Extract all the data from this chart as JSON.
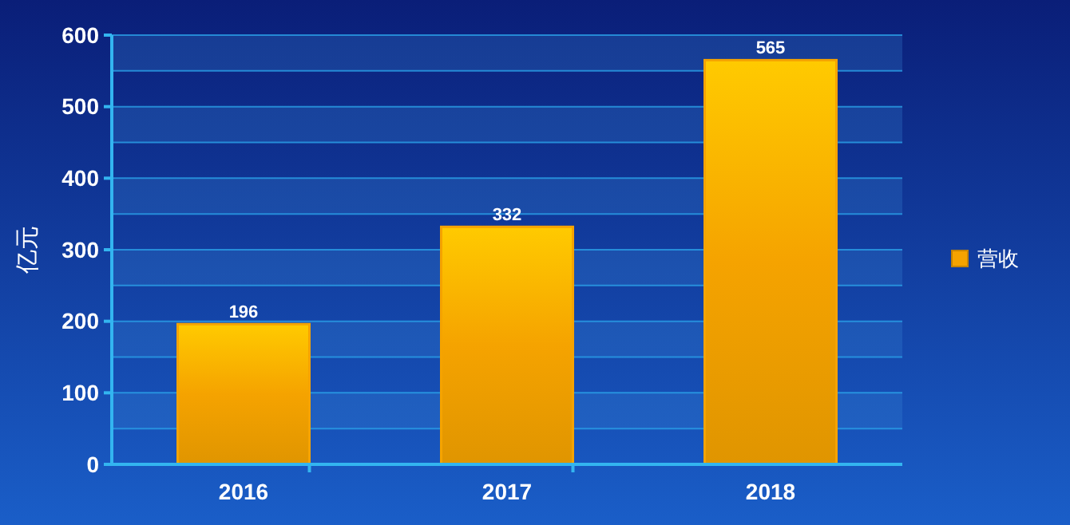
{
  "chart_data": {
    "type": "bar",
    "ylabel": "亿元",
    "categories": [
      "2016",
      "2017",
      "2018"
    ],
    "series": [
      {
        "name": "营收",
        "color": "#f5a300",
        "values": [
          196,
          332,
          565
        ]
      }
    ],
    "ylim": [
      0,
      600
    ],
    "yticks": [
      0,
      {
        "value": 50,
        "label": null
      },
      100,
      {
        "value": 150,
        "label": null
      },
      200,
      {
        "value": 250,
        "label": null
      },
      300,
      {
        "value": 350,
        "label": null
      },
      400,
      {
        "value": 450,
        "label": null
      },
      500,
      {
        "value": 550,
        "label": null
      },
      600
    ],
    "grid": true,
    "legend": "right",
    "data_labels": true
  }
}
